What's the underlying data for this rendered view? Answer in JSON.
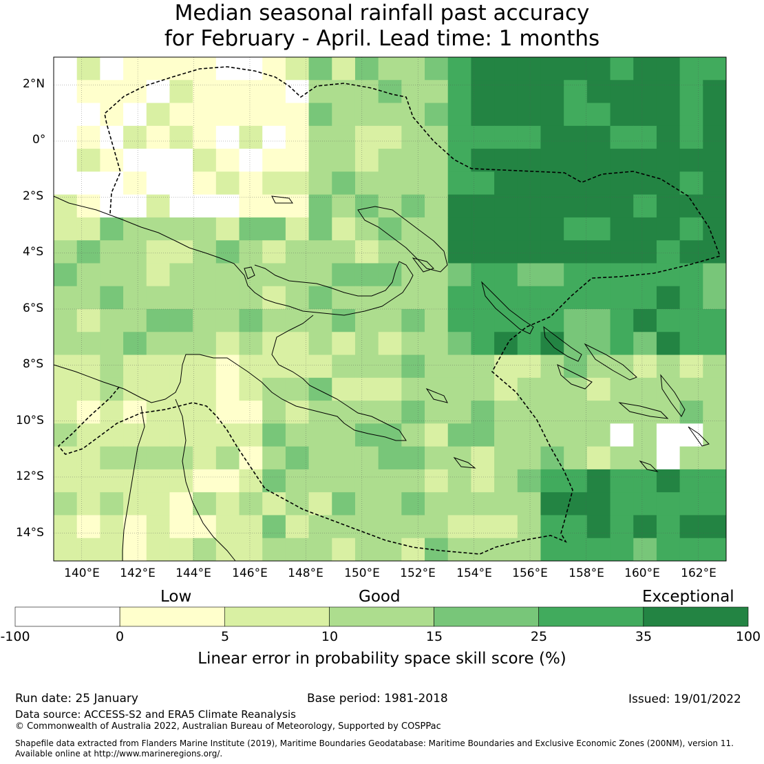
{
  "title": {
    "line1": "Median seasonal rainfall past accuracy",
    "line2": "for February - April. Lead time: 1 months"
  },
  "map": {
    "lat_ticks": [
      "2°N",
      "0°",
      "2°S",
      "4°S",
      "6°S",
      "8°S",
      "10°S",
      "12°S",
      "14°S"
    ],
    "lon_ticks": [
      "140°E",
      "142°E",
      "144°E",
      "146°E",
      "148°E",
      "150°E",
      "152°E",
      "154°E",
      "156°E",
      "158°E",
      "160°E",
      "162°E"
    ],
    "lon_range": [
      139,
      163
    ],
    "lat_range": [
      -15,
      3
    ],
    "grid_cell_deg": 0.83,
    "skill_levels": {
      "white": "< 0",
      "c1": "0-5",
      "c2": "5-10",
      "c3": "10-15",
      "c4": "15-25",
      "c5": "25-35",
      "c6": "35-100"
    }
  },
  "colorbar": {
    "category_labels": [
      "Low",
      "Good",
      "Exceptional"
    ],
    "ticks": [
      "-100",
      "0",
      "5",
      "10",
      "15",
      "25",
      "35",
      "100"
    ],
    "colors": [
      "#ffffff",
      "#ffffcc",
      "#d9f0a3",
      "#addd8e",
      "#78c679",
      "#41ab5d",
      "#238443"
    ],
    "label": "Linear error in probability space skill score (%)"
  },
  "footer": {
    "run_date": "Run date: 25 January",
    "base_period": "Base period: 1981-2018",
    "issued": "Issued: 19/01/2022",
    "data_source": "Data source: ACCESS-S2 and ERA5 Climate Reanalysis",
    "copyright": "© Commonwealth of Australia 2022, Australian Bureau of Meteorology, Supported by COSPPac",
    "shapefile_line1": "Shapefile data extracted from Flanders Marine Institute (2019), Maritime Boundaries Geodatabase: Maritime Boundaries and Exclusive Economic Zones (200NM), version 11.",
    "shapefile_line2": "Available online at http://www.marineregions.org/."
  }
}
